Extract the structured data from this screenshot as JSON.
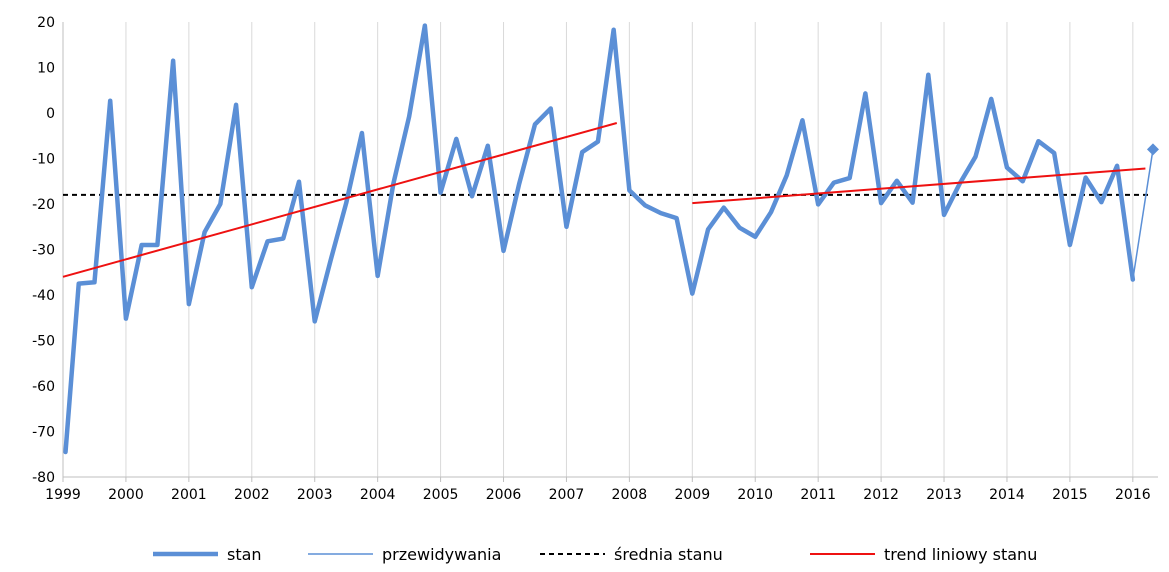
{
  "chart_data": {
    "type": "line",
    "title": "",
    "xlabel": "",
    "ylabel": "",
    "ylim": [
      -80,
      20
    ],
    "yticks": [
      "20",
      "10",
      "0",
      "-10",
      "-20",
      "-30",
      "-40",
      "-50",
      "-60",
      "-70",
      "-80"
    ],
    "yticks_values": [
      20,
      10,
      0,
      -10,
      -20,
      -30,
      -40,
      -50,
      -60,
      -70,
      -80
    ],
    "xlim": [
      1999,
      2016.4
    ],
    "xticks": [
      "1999",
      "2000",
      "2001",
      "2002",
      "2003",
      "2004",
      "2005",
      "2006",
      "2007",
      "2008",
      "2009",
      "2010",
      "2011",
      "2012",
      "2013",
      "2014",
      "2015",
      "2016"
    ],
    "grid": "vertical",
    "legend_position": "bottom",
    "colors": {
      "stan": "#5B8FD6",
      "przewidywania": "#5B8FD6",
      "srednia": "#000000",
      "trend": "#EE1111",
      "grid": "#D9D9D9"
    },
    "series": [
      {
        "name": "stan",
        "x": [
          1999.04,
          1999.25,
          1999.5,
          1999.75,
          2000.0,
          2000.25,
          2000.5,
          2000.75,
          2001.0,
          2001.25,
          2001.5,
          2001.75,
          2002.0,
          2002.25,
          2002.5,
          2002.75,
          2003.0,
          2003.25,
          2003.5,
          2003.75,
          2004.0,
          2004.25,
          2004.5,
          2004.75,
          2005.0,
          2005.25,
          2005.5,
          2005.75,
          2006.0,
          2006.25,
          2006.5,
          2006.75,
          2007.0,
          2007.25,
          2007.5,
          2007.75,
          2008.0,
          2008.25,
          2008.5,
          2008.75,
          2009.0,
          2009.25,
          2009.5,
          2009.75,
          2010.0,
          2010.25,
          2010.5,
          2010.75,
          2011.0,
          2011.25,
          2011.5,
          2011.75,
          2012.0,
          2012.25,
          2012.5,
          2012.75,
          2013.0,
          2013.25,
          2013.5,
          2013.75,
          2014.0,
          2014.25,
          2014.5,
          2014.75,
          2015.0,
          2015.25,
          2015.5,
          2015.75,
          2016.0
        ],
        "values": [
          -74.5,
          -37.5,
          -37.2,
          2.7,
          -45.2,
          -29.0,
          -29.0,
          11.5,
          -42.0,
          -26.2,
          -20.0,
          1.8,
          -38.3,
          -28.2,
          -27.6,
          -15.1,
          -45.8,
          -32.5,
          -19.8,
          -4.4,
          -35.8,
          -15.5,
          -0.8,
          19.2,
          -17.5,
          -5.7,
          -18.3,
          -7.2,
          -30.3,
          -15.5,
          -2.5,
          1.0,
          -25.0,
          -8.6,
          -6.3,
          18.3,
          -17.0,
          -20.3,
          -22.0,
          -23.1,
          -39.7,
          -25.6,
          -20.8,
          -25.2,
          -27.2,
          -21.8,
          -13.7,
          -1.6,
          -20.1,
          -15.3,
          -14.3,
          4.3,
          -19.8,
          -14.9,
          -19.7,
          8.4,
          -22.4,
          -15.5,
          -9.6,
          3.1,
          -12.0,
          -15.0,
          -6.2,
          -8.8,
          -29.0,
          -14.2,
          -19.6,
          -11.6,
          -36.6
        ]
      },
      {
        "name": "przewidywania",
        "x": [
          2016.0,
          2016.32
        ],
        "values": [
          -36.6,
          -8.0
        ]
      },
      {
        "name": "średnia stanu",
        "x": [
          1999.0,
          2016.3
        ],
        "values": [
          -18.0,
          -18.0
        ]
      },
      {
        "name": "trend liniowy stanu",
        "segments": [
          {
            "x": [
              1999.0,
              2007.8
            ],
            "values": [
              -36.0,
              -2.2
            ]
          },
          {
            "x": [
              2009.0,
              2016.2
            ],
            "values": [
              -19.8,
              -12.2
            ]
          }
        ]
      }
    ]
  },
  "legend": {
    "items": [
      {
        "label": "stan"
      },
      {
        "label": "przewidywania"
      },
      {
        "label": "średnia stanu"
      },
      {
        "label": "trend liniowy stanu"
      }
    ]
  }
}
